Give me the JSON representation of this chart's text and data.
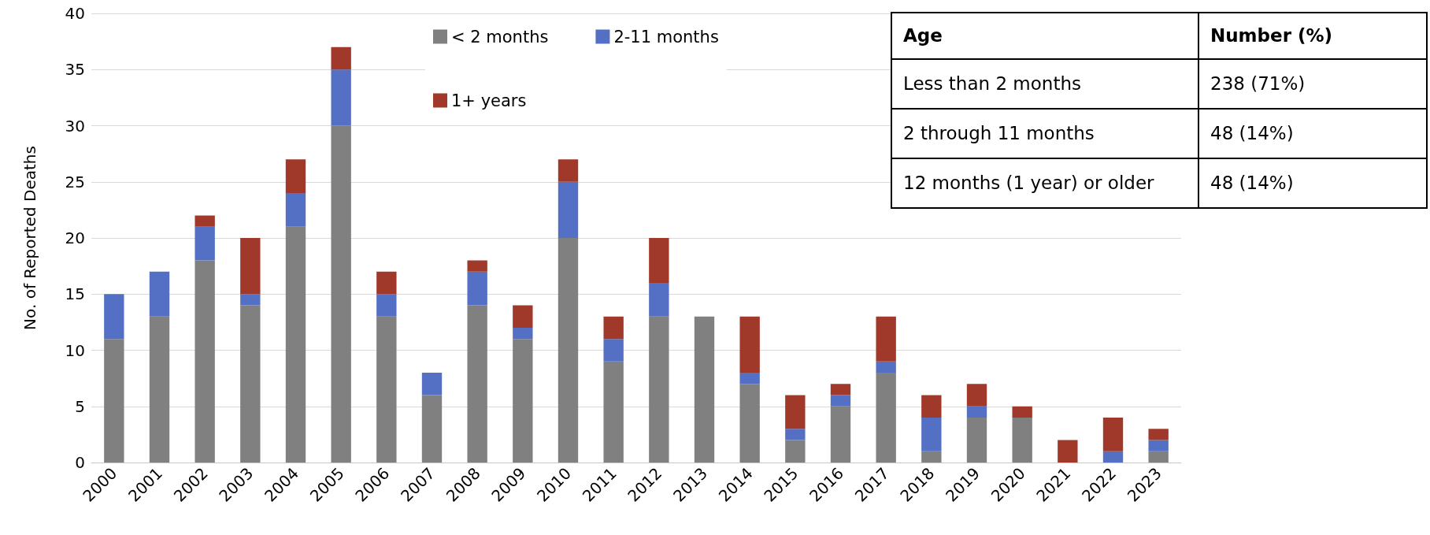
{
  "chart_data": {
    "type": "bar",
    "stacked": true,
    "ylabel": "No. of Reported Deaths",
    "categories": [
      "2000",
      "2001",
      "2002",
      "2003",
      "2004",
      "2005",
      "2006",
      "2007",
      "2008",
      "2009",
      "2010",
      "2011",
      "2012",
      "2013",
      "2014",
      "2015",
      "2016",
      "2017",
      "2018",
      "2019",
      "2020",
      "2021",
      "2022",
      "2023"
    ],
    "series": [
      {
        "name": "< 2 months",
        "color": "#808080",
        "values": [
          11,
          13,
          18,
          14,
          21,
          30,
          13,
          6,
          14,
          11,
          20,
          9,
          13,
          13,
          7,
          2,
          5,
          8,
          1,
          4,
          4,
          0,
          0,
          1
        ]
      },
      {
        "name": "2-11 months",
        "color": "#5470c4",
        "values": [
          4,
          4,
          3,
          1,
          3,
          5,
          2,
          2,
          3,
          1,
          5,
          2,
          3,
          0,
          1,
          1,
          1,
          1,
          3,
          1,
          0,
          0,
          1,
          1
        ]
      },
      {
        "name": "1+ years",
        "color": "#a0392a",
        "values": [
          0,
          0,
          1,
          5,
          3,
          2,
          2,
          0,
          1,
          2,
          2,
          2,
          4,
          0,
          5,
          3,
          1,
          4,
          2,
          2,
          1,
          2,
          3,
          1
        ]
      }
    ],
    "ylim": [
      0,
      40
    ],
    "yticks": [
      0,
      5,
      10,
      15,
      20,
      25,
      30,
      35,
      40
    ],
    "grid": "y",
    "legend": "top",
    "annotations": [
      "Age",
      "Number (%)",
      "Less than 2 months",
      "238 (71%)",
      "2 through 11 months",
      "48 (14%)",
      "12 months (1 year) or older",
      "48 (14%)"
    ]
  }
}
